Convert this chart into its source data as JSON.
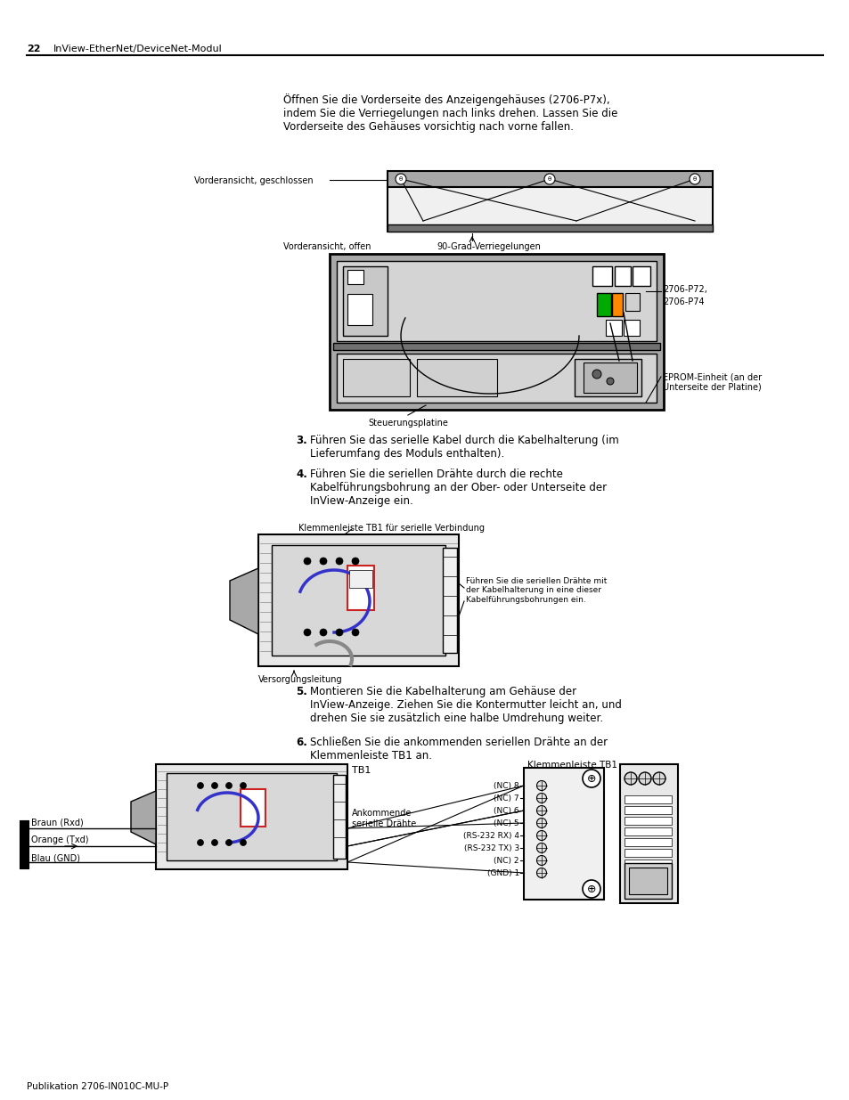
{
  "page_number": "22",
  "header_text": "InView-EtherNet/DeviceNet-Modul",
  "footer_text": "Publikation 2706-IN010C-MU-P",
  "bg_color": "#ffffff",
  "gray_light": "#d4d4d4",
  "gray_medium": "#a8a8a8",
  "gray_dark": "#707070",
  "green_color": "#00aa00",
  "orange_color": "#ff8800",
  "blue_color": "#3333cc",
  "red_color": "#cc2222",
  "gray_wire": "#888888",
  "intro_text": "Öffnen Sie die Vorderseite des Anzeigengehäuses (2706-P7x),\nindem Sie die Verriegelungen nach links drehen. Lassen Sie die\nVorderseite des Gehäuses vorsichtig nach vorne fallen.",
  "label_vorderansicht_geschlossen": "Vorderansicht, geschlossen",
  "label_vorderansicht_offen": "Vorderansicht, offen",
  "label_90grad": "90-Grad-Verriegelungen",
  "label_2706p72": "2706-P72,",
  "label_2706p74": "2706-P74",
  "label_steuerungsplatine": "Steuerungsplatine",
  "label_eprom": "EPROM-Einheit (an der\nUnterseite der Platine)",
  "step3_num": "3.",
  "step3_text": " Führen Sie das serielle Kabel durch die Kabelhalterung (im\n Lieferumfang des Moduls enthalten).",
  "step4_num": "4.",
  "step4_text": " Führen Sie die seriellen Drähte durch die rechte\n Kabelführungsbohrung an der Ober- oder Unterseite der\n InView-Anzeige ein.",
  "label_klemmenleiste_tb1": "Klemmenleiste TB1 für serielle Verbindung",
  "label_fuehren": "Führen Sie die seriellen Drähte mit\nder Kabelhalterung in eine dieser\nKabelführungsbohrungen ein.",
  "label_versorgungsleitung": "Versorgungsleitung",
  "step5_num": "5.",
  "step5_text": " Montieren Sie die Kabelhalterung am Gehäuse der\n InView-Anzeige. Ziehen Sie die Kontermutter leicht an, und\n drehen Sie sie zusätzlich eine halbe Umdrehung weiter.",
  "step6_num": "6.",
  "step6_text": " Schließen Sie die ankommenden seriellen Drähte an der\n Klemmenleiste TB1 an.",
  "label_tb1": "TB1",
  "label_ankommende": "Ankommende\nserielle Drähte",
  "label_klemmenleiste_tb1_right": "Klemmenleiste TB1",
  "wire_labels_left": [
    "Braun (Rxd)",
    "Orange (Txd)",
    "Blau (GND)"
  ],
  "wire_labels_right": [
    "(NC) 8",
    "(NC) 7",
    "(NC) 6",
    "(NC) 5",
    "(RS-232 RX) 4",
    "(RS-232 TX) 3",
    "(NC) 2",
    "(GND) 1"
  ]
}
